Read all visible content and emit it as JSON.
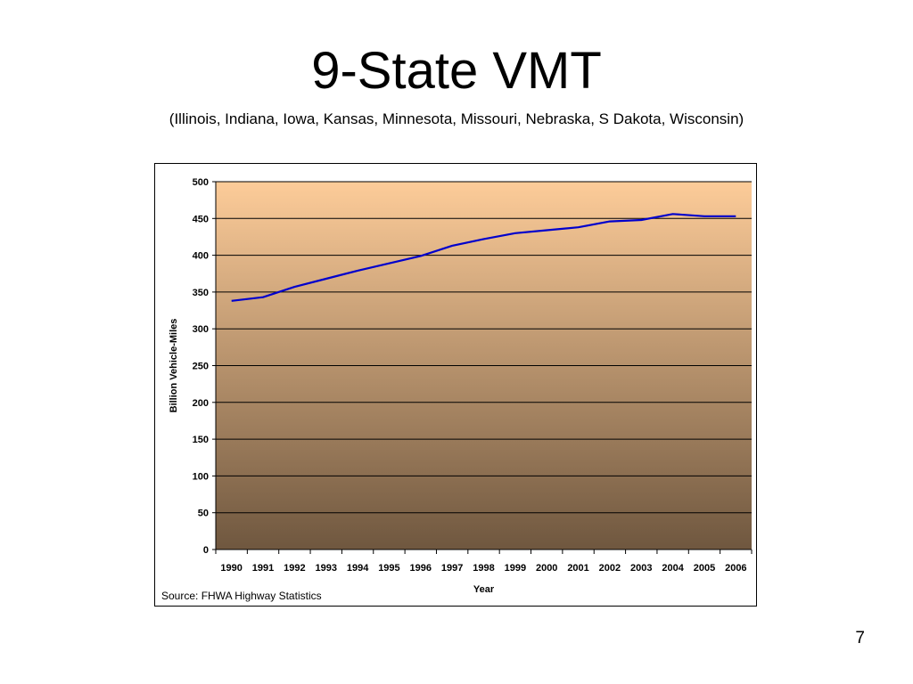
{
  "slide": {
    "title": "9-State VMT",
    "subtitle": "(Illinois, Indiana, Iowa, Kansas, Minnesota, Missouri, Nebraska, S Dakota, Wisconsin)",
    "source": "Source:  FHWA Highway Statistics",
    "page_number": "7"
  },
  "chart_data": {
    "type": "line",
    "title": "",
    "xlabel": "Year",
    "ylabel": "Billion Vehicle-Miles",
    "categories": [
      "1990",
      "1991",
      "1992",
      "1993",
      "1994",
      "1995",
      "1996",
      "1997",
      "1998",
      "1999",
      "2000",
      "2001",
      "2002",
      "2003",
      "2004",
      "2005",
      "2006"
    ],
    "series": [
      {
        "values": [
          338,
          343,
          357,
          368,
          379,
          389,
          399,
          413,
          422,
          430,
          434,
          438,
          446,
          448,
          456,
          453,
          453
        ],
        "color": "#0000cc"
      }
    ],
    "ylim": [
      0,
      500
    ],
    "yticks": [
      0,
      50,
      100,
      150,
      200,
      250,
      300,
      350,
      400,
      450,
      500
    ],
    "grid": true,
    "legend": "none",
    "background_gradient": [
      "#fdcc99",
      "#6f573f"
    ],
    "gridline_color": "#000000"
  }
}
